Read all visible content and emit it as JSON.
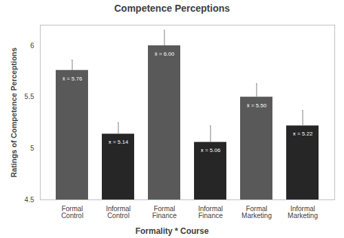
{
  "chart_data": {
    "type": "bar",
    "title": "Competence Perceptions",
    "x_label": "Formality * Course",
    "y_label": "Ratings of Competence Perceptions",
    "categories": [
      "Formal Control",
      "Informal Control",
      "Formal Finance",
      "Informal Finance",
      "Formal Marketing",
      "Informal Marketing"
    ],
    "values": [
      5.76,
      5.14,
      6.0,
      5.06,
      5.5,
      5.22
    ],
    "value_labels": [
      "x̄ = 5.76",
      "x̄ = 5.14",
      "x̄ = 6.00",
      "x̄ = 5.06",
      "x̄ = 5.50",
      "x̄ = 5.22"
    ],
    "error": [
      0.1,
      0.11,
      0.15,
      0.16,
      0.13,
      0.15
    ],
    "colors": [
      "#595959",
      "#262626",
      "#595959",
      "#262626",
      "#595959",
      "#262626"
    ],
    "ylim": [
      4.5,
      6.2
    ],
    "yticks": [
      4.5,
      5,
      5.5,
      6
    ],
    "grid": false,
    "data_labels": true
  }
}
